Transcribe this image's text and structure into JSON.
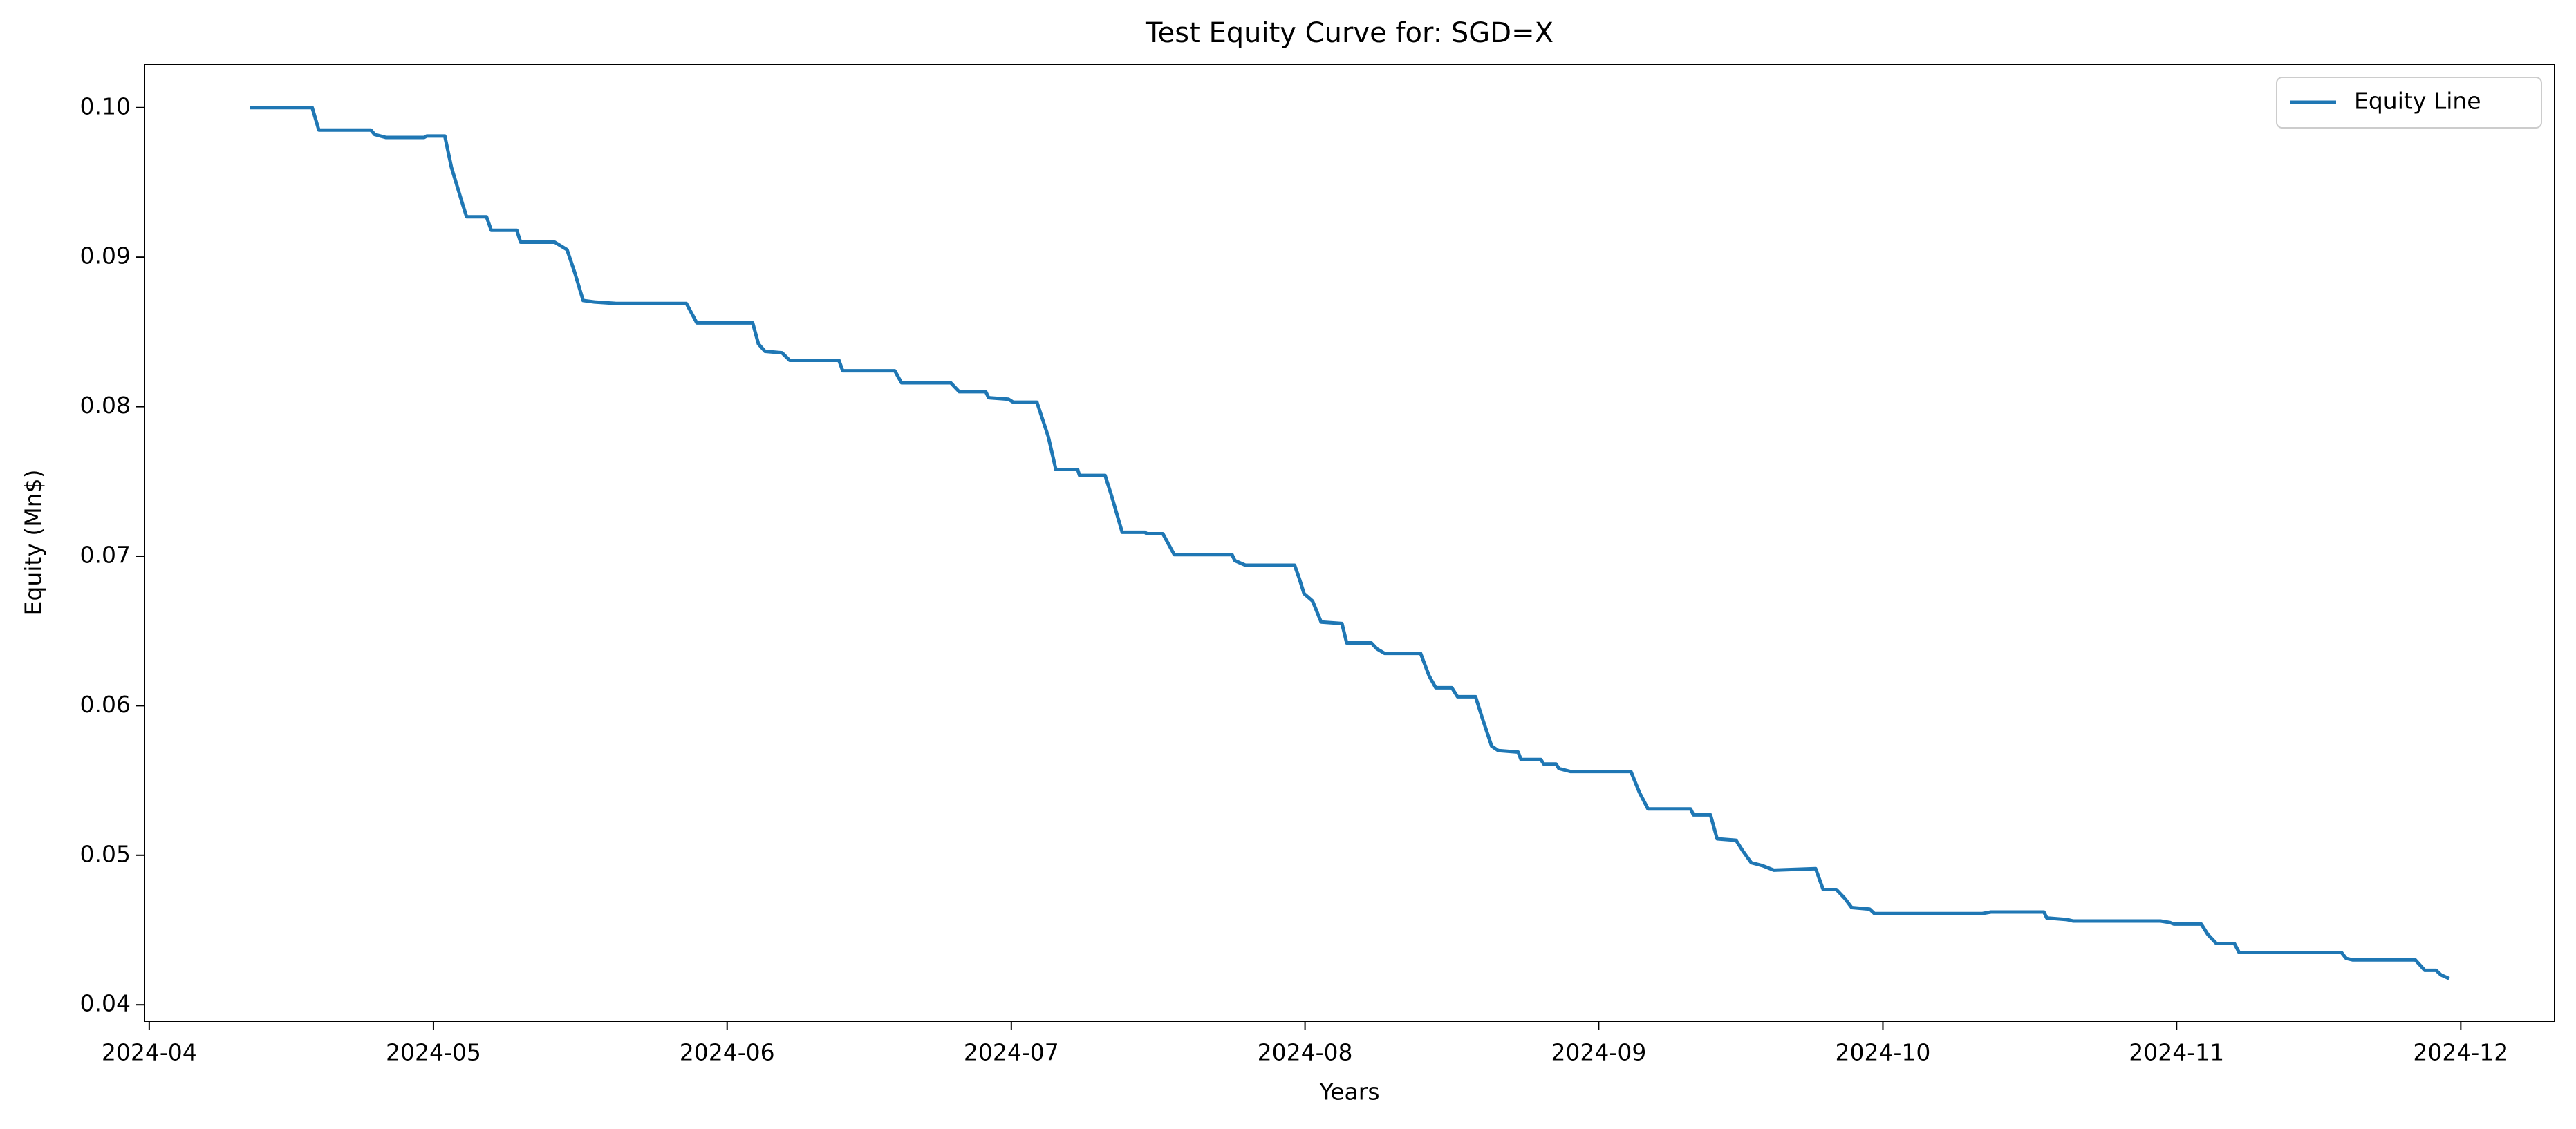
{
  "chart_data": {
    "type": "line",
    "title": "Test Equity Curve for: SGD=X",
    "x_label": "Years",
    "y_label": "Equity (Mn$)",
    "legend": "upper right",
    "series": [
      {
        "name": "Equity Line",
        "color": "#1f77b4",
        "x": [
          10.8,
          17.2,
          17.9,
          23.4,
          23.8,
          25.0,
          29.0,
          29.3,
          31.2,
          31.9,
          33.1,
          33.5,
          35.6,
          36.1,
          38.8,
          39.2,
          42.8,
          44.1,
          44.9,
          45.8,
          47.0,
          49.3,
          56.7,
          57.8,
          63.7,
          64.3,
          65.0,
          66.8,
          67.6,
          72.8,
          73.2,
          78.7,
          79.4,
          84.6,
          85.5,
          88.3,
          88.6,
          90.7,
          91.2,
          93.7,
          94.9,
          95.7,
          98.0,
          98.2,
          100.9,
          101.6,
          102.7,
          105.1,
          105.3,
          107.0,
          108.2,
          114.3,
          114.6,
          115.7,
          120.9,
          121.4,
          121.9,
          122.8,
          123.7,
          125.9,
          126.4,
          129.0,
          129.6,
          130.4,
          134.2,
          135.1,
          135.8,
          137.5,
          138.1,
          140.0,
          140.7,
          141.7,
          142.4,
          144.5,
          144.8,
          146.9,
          147.2,
          148.5,
          148.8,
          150.0,
          156.4,
          157.3,
          158.2,
          162.7,
          163.0,
          164.8,
          165.5,
          167.5,
          168.2,
          169.1,
          170.3,
          171.5,
          175.9,
          176.7,
          178.1,
          179.0,
          179.7,
          181.6,
          182.1,
          193.5,
          194.4,
          200.0,
          200.3,
          202.4,
          203.1,
          212.3,
          213.3,
          213.7,
          216.6,
          217.3,
          218.2,
          220.1,
          220.6,
          227.9,
          231.4,
          231.9,
          232.6,
          239.2,
          240.2,
          241.4,
          241.9,
          242.6
        ],
        "values": [
          0.1,
          0.1,
          0.0985,
          0.0985,
          0.0982,
          0.098,
          0.098,
          0.0981,
          0.0981,
          0.096,
          0.0935,
          0.0927,
          0.0927,
          0.0918,
          0.0918,
          0.091,
          0.091,
          0.0905,
          0.089,
          0.0871,
          0.087,
          0.0869,
          0.0869,
          0.0856,
          0.0856,
          0.0842,
          0.0837,
          0.0836,
          0.0831,
          0.0831,
          0.0824,
          0.0824,
          0.0816,
          0.0816,
          0.081,
          0.081,
          0.0806,
          0.0805,
          0.0803,
          0.0803,
          0.078,
          0.0758,
          0.0758,
          0.0754,
          0.0754,
          0.074,
          0.0716,
          0.0716,
          0.0715,
          0.0715,
          0.0701,
          0.0701,
          0.0697,
          0.0694,
          0.0694,
          0.0685,
          0.0675,
          0.067,
          0.0656,
          0.0655,
          0.0642,
          0.0642,
          0.0638,
          0.0635,
          0.0635,
          0.062,
          0.0612,
          0.0612,
          0.0606,
          0.0606,
          0.0592,
          0.0573,
          0.057,
          0.0569,
          0.0564,
          0.0564,
          0.0561,
          0.0561,
          0.0558,
          0.0556,
          0.0556,
          0.0542,
          0.0531,
          0.0531,
          0.0527,
          0.0527,
          0.0511,
          0.051,
          0.0503,
          0.0495,
          0.0493,
          0.049,
          0.0491,
          0.0477,
          0.0477,
          0.0471,
          0.0465,
          0.0464,
          0.0461,
          0.0461,
          0.0462,
          0.0462,
          0.0458,
          0.0457,
          0.0456,
          0.0456,
          0.0455,
          0.0454,
          0.0454,
          0.0447,
          0.0441,
          0.0441,
          0.0435,
          0.0435,
          0.0435,
          0.0431,
          0.043,
          0.043,
          0.0423,
          0.0423,
          0.042,
          0.0418
        ]
      }
    ],
    "xlim": [
      -0.5,
      253.9
    ],
    "xticks": [
      {
        "value": 0,
        "label": "2024-04"
      },
      {
        "value": 30,
        "label": "2024-05"
      },
      {
        "value": 61,
        "label": "2024-06"
      },
      {
        "value": 91,
        "label": "2024-07"
      },
      {
        "value": 122,
        "label": "2024-08"
      },
      {
        "value": 153,
        "label": "2024-09"
      },
      {
        "value": 183,
        "label": "2024-10"
      },
      {
        "value": 214,
        "label": "2024-11"
      },
      {
        "value": 244,
        "label": "2024-12"
      }
    ],
    "ylim": [
      0.0389,
      0.1029
    ],
    "yticks": [
      0.04,
      0.05,
      0.06,
      0.07,
      0.08,
      0.09,
      {
        "value": 0.1,
        "label": "0.10"
      }
    ]
  }
}
